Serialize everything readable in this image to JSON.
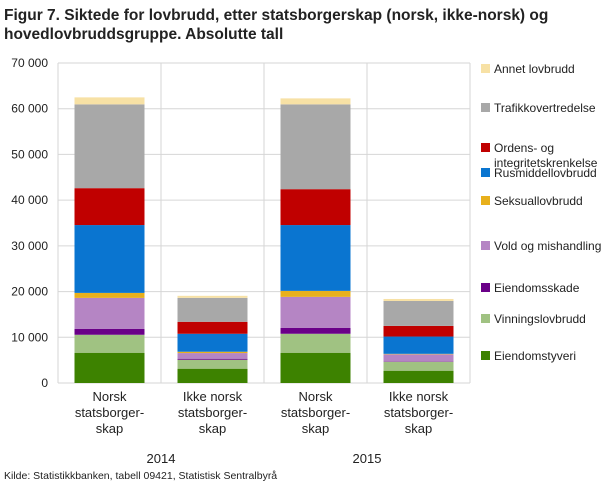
{
  "chart_data": {
    "type": "bar",
    "stacked": true,
    "title": "Figur 7. Siktede for lovbrudd, etter statsborgerskap (norsk, ikke-norsk) og hovedlovbruddsgruppe. Absolutte tall",
    "source": "Kilde: Statistikkbanken, tabell 09421, Statistisk Sentralbyrå",
    "ylim": [
      0,
      70000
    ],
    "yticks": [
      "0",
      "10 000",
      "20 000",
      "30 000",
      "40 000",
      "50 000",
      "60 000",
      "70 000"
    ],
    "grid": true,
    "legend_placement": "right",
    "groups": [
      "2014",
      "2015"
    ],
    "categories": [
      [
        "Norsk",
        "statsborger-",
        "skap"
      ],
      [
        "Ikke norsk",
        "statsborger-",
        "skap"
      ],
      [
        "Norsk",
        "statsborger-",
        "skap"
      ],
      [
        "Ikke norsk",
        "statsborger-",
        "skap"
      ]
    ],
    "series": [
      {
        "name": "Eiendomstyveri",
        "color": "#3d8200",
        "values": [
          6620,
          3130,
          6620,
          2690
        ]
      },
      {
        "name": "Vinningslovbrudd",
        "color": "#a0c282",
        "values": [
          3930,
          1960,
          4150,
          1960
        ]
      },
      {
        "name": "Eiendomsskade",
        "color": "#6a0088",
        "values": [
          1310,
          220,
          1310,
          100
        ]
      },
      {
        "name": "Vold og mishandling",
        "color": "#b585c4",
        "values": [
          6760,
          1240,
          6760,
          1530
        ]
      },
      {
        "name": "Seksuallovbrudd",
        "color": "#e8b01c",
        "values": [
          1090,
          290,
          1310,
          100
        ]
      },
      {
        "name": "Rusmiddellovbrudd",
        "color": "#0a75d0",
        "values": [
          14840,
          3930,
          14400,
          3780
        ]
      },
      {
        "name": "Ordens- og integritetskrenkelse",
        "color": "#c00000",
        "values": [
          8070,
          2620,
          7850,
          2330
        ]
      },
      {
        "name": "Trafikkovertredelse",
        "color": "#a8a8a8",
        "values": [
          18330,
          5240,
          18550,
          5450
        ]
      },
      {
        "name": "Annet lovbrudd",
        "color": "#f7e1a5",
        "values": [
          1530,
          440,
          1310,
          440
        ]
      }
    ]
  }
}
